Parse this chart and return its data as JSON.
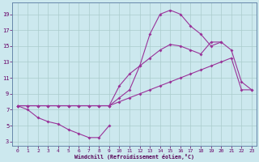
{
  "bg_color": "#cce8ee",
  "grid_color": "#aacccc",
  "line_color": "#993399",
  "xlabel": "Windchill (Refroidissement éolien,°C)",
  "xlim": [
    -0.5,
    23.5
  ],
  "ylim": [
    2.5,
    20.5
  ],
  "xticks": [
    0,
    1,
    2,
    3,
    4,
    5,
    6,
    7,
    8,
    9,
    10,
    11,
    12,
    13,
    14,
    15,
    16,
    17,
    18,
    19,
    20,
    21,
    22,
    23
  ],
  "yticks": [
    3,
    5,
    7,
    9,
    11,
    13,
    15,
    17,
    19
  ],
  "line1_x": [
    0,
    1,
    2,
    3,
    4,
    5,
    6,
    7,
    8,
    9
  ],
  "line1_y": [
    7.5,
    7.0,
    6.0,
    5.5,
    5.2,
    4.5,
    4.0,
    3.5,
    3.5,
    5.0
  ],
  "line2_x": [
    0,
    1,
    2,
    3,
    4,
    5,
    6,
    7,
    8,
    9,
    10,
    11,
    12,
    13,
    14,
    15,
    16,
    17,
    18,
    19,
    20,
    21,
    22,
    23
  ],
  "line2_y": [
    7.5,
    7.5,
    7.5,
    7.5,
    7.5,
    7.5,
    7.5,
    7.5,
    7.5,
    7.5,
    8.0,
    8.5,
    9.0,
    9.5,
    10.0,
    10.5,
    11.0,
    11.5,
    12.0,
    12.5,
    13.0,
    13.5,
    9.5,
    9.5
  ],
  "line3_x": [
    0,
    1,
    2,
    3,
    4,
    5,
    6,
    7,
    8,
    9,
    10,
    11,
    12,
    13,
    14,
    15,
    16,
    17,
    18,
    19,
    20,
    21,
    22,
    23
  ],
  "line3_y": [
    7.5,
    7.5,
    7.5,
    7.5,
    7.5,
    7.5,
    7.5,
    7.5,
    7.5,
    7.5,
    10.0,
    11.5,
    12.5,
    13.5,
    14.5,
    15.2,
    15.0,
    14.5,
    14.0,
    15.5,
    15.5,
    14.5,
    10.5,
    9.5
  ],
  "line4_x": [
    0,
    1,
    2,
    3,
    4,
    5,
    6,
    7,
    8,
    9,
    10,
    11,
    12,
    13,
    14,
    15,
    16,
    17,
    18,
    19,
    20
  ],
  "line4_y": [
    7.5,
    7.5,
    7.5,
    7.5,
    7.5,
    7.5,
    7.5,
    7.5,
    7.5,
    7.5,
    8.5,
    9.5,
    12.5,
    16.5,
    19.0,
    19.5,
    19.0,
    17.5,
    16.5,
    15.0,
    15.5
  ]
}
